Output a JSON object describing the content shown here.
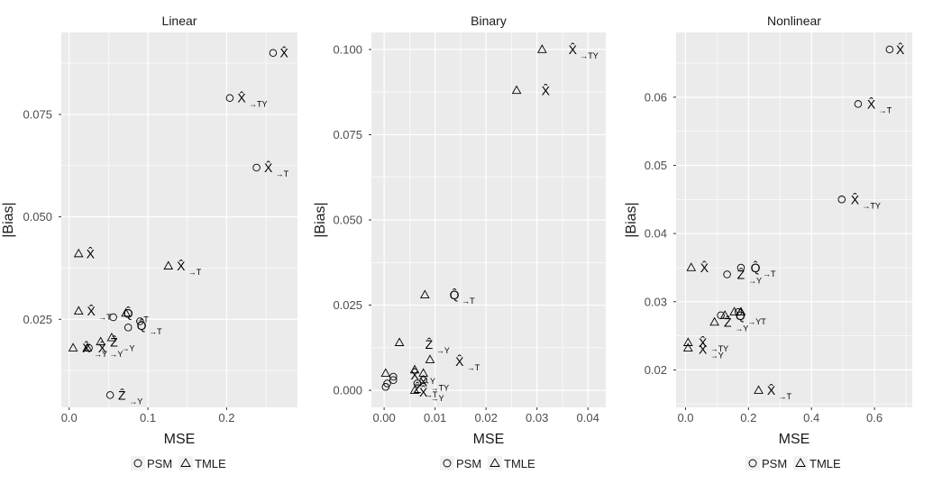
{
  "figure": {
    "xlabel": "MSE",
    "ylabel": "|Bias|",
    "legend": {
      "placement": "bottom",
      "items": [
        {
          "label": "PSM",
          "shape": "circle"
        },
        {
          "label": "TMLE",
          "shape": "triangle"
        }
      ]
    },
    "colors": {
      "panel_bg": "#ebebeb",
      "grid": "#ffffff",
      "marks": "#000000",
      "text": "#1a1a1a",
      "tick_text": "#4d4d4d"
    }
  },
  "chart_data": [
    {
      "type": "scatter",
      "title": "Linear",
      "xlabel": "MSE",
      "ylabel": "|Bias|",
      "xlim": [
        -0.01,
        0.29
      ],
      "ylim": [
        0.0035,
        0.095
      ],
      "xticks": [
        0.0,
        0.1,
        0.2
      ],
      "xtick_labels": [
        "0.0",
        "0.1",
        "0.2"
      ],
      "yticks": [
        0.025,
        0.05,
        0.075
      ],
      "ytick_labels": [
        "0.025",
        "0.050",
        "0.075"
      ],
      "grid": true,
      "points": [
        {
          "method": "PSM",
          "x": 0.259,
          "y": 0.09
        },
        {
          "method": "PSM",
          "x": 0.204,
          "y": 0.079
        },
        {
          "method": "PSM",
          "x": 0.238,
          "y": 0.062
        },
        {
          "method": "PSM",
          "x": 0.025,
          "y": 0.018
        },
        {
          "method": "PSM",
          "x": 0.052,
          "y": 0.0065
        },
        {
          "method": "PSM",
          "x": 0.075,
          "y": 0.023
        },
        {
          "method": "PSM",
          "x": 0.09,
          "y": 0.0245
        },
        {
          "method": "PSM",
          "x": 0.056,
          "y": 0.0255
        },
        {
          "method": "TMLE",
          "x": 0.012,
          "y": 0.041
        },
        {
          "method": "TMLE",
          "x": 0.126,
          "y": 0.038
        },
        {
          "method": "TMLE",
          "x": 0.012,
          "y": 0.027
        },
        {
          "method": "TMLE",
          "x": 0.005,
          "y": 0.018
        },
        {
          "method": "TMLE",
          "x": 0.023,
          "y": 0.018
        },
        {
          "method": "TMLE",
          "x": 0.04,
          "y": 0.0195
        },
        {
          "method": "TMLE",
          "x": 0.054,
          "y": 0.0205
        },
        {
          "method": "TMLE",
          "x": 0.072,
          "y": 0.0265
        }
      ],
      "labels": [
        {
          "text": "X̂",
          "x": 0.273,
          "y": 0.09
        },
        {
          "text": "X̂",
          "x": 0.219,
          "y": 0.079,
          "sub": "→TY"
        },
        {
          "text": "X̂",
          "x": 0.253,
          "y": 0.062,
          "sub": "→T"
        },
        {
          "text": "X̂",
          "x": 0.027,
          "y": 0.041
        },
        {
          "text": "X̂",
          "x": 0.142,
          "y": 0.038,
          "sub": "→T"
        },
        {
          "text": "X̂",
          "x": 0.028,
          "y": 0.027,
          "sub": "→T"
        },
        {
          "text": "Q̂",
          "x": 0.075,
          "y": 0.0265,
          "sub": "→T"
        },
        {
          "text": "Q̂",
          "x": 0.092,
          "y": 0.0235,
          "sub": "→T"
        },
        {
          "text": "Ẑ",
          "x": 0.057,
          "y": 0.0195,
          "sub": "→Y"
        },
        {
          "text": "X̂",
          "x": 0.022,
          "y": 0.018,
          "sub": "→Y"
        },
        {
          "text": "X̂",
          "x": 0.042,
          "y": 0.018,
          "sub": "→Y"
        },
        {
          "text": "Ẑ",
          "x": 0.067,
          "y": 0.0065,
          "sub": "→Y"
        }
      ]
    },
    {
      "type": "scatter",
      "title": "Binary",
      "xlabel": "MSE",
      "ylabel": "|Bias|",
      "xlim": [
        -0.0025,
        0.0435
      ],
      "ylim": [
        -0.005,
        0.105
      ],
      "xticks": [
        0.0,
        0.01,
        0.02,
        0.03,
        0.04
      ],
      "xtick_labels": [
        "0.00",
        "0.01",
        "0.02",
        "0.03",
        "0.04"
      ],
      "yticks": [
        0.0,
        0.025,
        0.05,
        0.075,
        0.1
      ],
      "ytick_labels": [
        "0.000",
        "0.025",
        "0.050",
        "0.075",
        "0.100"
      ],
      "grid": true,
      "points": [
        {
          "method": "PSM",
          "x": 0.0003,
          "y": 0.001
        },
        {
          "method": "PSM",
          "x": 0.0006,
          "y": 0.002
        },
        {
          "method": "PSM",
          "x": 0.0018,
          "y": 0.004
        },
        {
          "method": "PSM",
          "x": 0.0018,
          "y": 0.003
        },
        {
          "method": "PSM",
          "x": 0.0065,
          "y": 0.002
        },
        {
          "method": "PSM",
          "x": 0.0077,
          "y": 0.003
        },
        {
          "method": "TMLE",
          "x": 0.031,
          "y": 0.1
        },
        {
          "method": "TMLE",
          "x": 0.026,
          "y": 0.088
        },
        {
          "method": "TMLE",
          "x": 0.008,
          "y": 0.028
        },
        {
          "method": "TMLE",
          "x": 0.003,
          "y": 0.014
        },
        {
          "method": "TMLE",
          "x": 0.009,
          "y": 0.009
        },
        {
          "method": "TMLE",
          "x": 0.0003,
          "y": 0.005
        },
        {
          "method": "TMLE",
          "x": 0.006,
          "y": 0.006
        },
        {
          "method": "TMLE",
          "x": 0.0077,
          "y": 0.005
        },
        {
          "method": "TMLE",
          "x": 0.006,
          "y": 0.0
        }
      ],
      "labels": [
        {
          "text": "X̂",
          "x": 0.037,
          "y": 0.1,
          "sub": "→TY"
        },
        {
          "text": "X̂",
          "x": 0.0317,
          "y": 0.088
        },
        {
          "text": "Q̂",
          "x": 0.0138,
          "y": 0.028,
          "sub": "→T"
        },
        {
          "text": "Ẑ",
          "x": 0.0088,
          "y": 0.0135,
          "sub": "→Y"
        },
        {
          "text": "X̂",
          "x": 0.0148,
          "y": 0.0085,
          "sub": "→T"
        },
        {
          "text": "X̂",
          "x": 0.006,
          "y": 0.0045,
          "sub": "→Y"
        },
        {
          "text": "X̂",
          "x": 0.0077,
          "y": 0.0025,
          "sub": "→TY"
        },
        {
          "text": "Ẑ",
          "x": 0.0065,
          "y": 0.0005,
          "sub": "→T"
        },
        {
          "text": "X̂",
          "x": 0.0077,
          "y": -0.0005,
          "sub": "→Y"
        }
      ]
    },
    {
      "type": "scatter",
      "title": "Nonlinear",
      "xlabel": "MSE",
      "ylabel": "|Bias|",
      "xlim": [
        -0.03,
        0.72
      ],
      "ylim": [
        0.0145,
        0.0695
      ],
      "xticks": [
        0.0,
        0.2,
        0.4,
        0.6
      ],
      "xtick_labels": [
        "0.0",
        "0.2",
        "0.4",
        "0.6"
      ],
      "yticks": [
        0.02,
        0.03,
        0.04,
        0.05,
        0.06
      ],
      "ytick_labels": [
        "0.02",
        "0.03",
        "0.04",
        "0.05",
        "0.06"
      ],
      "grid": true,
      "points": [
        {
          "method": "PSM",
          "x": 0.648,
          "y": 0.067
        },
        {
          "method": "PSM",
          "x": 0.548,
          "y": 0.059
        },
        {
          "method": "PSM",
          "x": 0.496,
          "y": 0.045
        },
        {
          "method": "PSM",
          "x": 0.176,
          "y": 0.035
        },
        {
          "method": "PSM",
          "x": 0.132,
          "y": 0.034
        },
        {
          "method": "PSM",
          "x": 0.112,
          "y": 0.028
        },
        {
          "method": "PSM",
          "x": 0.168,
          "y": 0.0285
        },
        {
          "method": "TMLE",
          "x": 0.018,
          "y": 0.035
        },
        {
          "method": "TMLE",
          "x": 0.232,
          "y": 0.017
        },
        {
          "method": "TMLE",
          "x": 0.092,
          "y": 0.027
        },
        {
          "method": "TMLE",
          "x": 0.125,
          "y": 0.028
        },
        {
          "method": "TMLE",
          "x": 0.155,
          "y": 0.0285
        },
        {
          "method": "TMLE",
          "x": 0.176,
          "y": 0.0285
        },
        {
          "method": "TMLE",
          "x": 0.008,
          "y": 0.024
        },
        {
          "method": "TMLE",
          "x": 0.008,
          "y": 0.0232
        }
      ],
      "labels": [
        {
          "text": "X̂",
          "x": 0.682,
          "y": 0.067
        },
        {
          "text": "X̂",
          "x": 0.59,
          "y": 0.059,
          "sub": "→T"
        },
        {
          "text": "X̂",
          "x": 0.538,
          "y": 0.045,
          "sub": "→TY"
        },
        {
          "text": "X̂",
          "x": 0.06,
          "y": 0.035
        },
        {
          "text": "Q̂",
          "x": 0.222,
          "y": 0.035,
          "sub": "→T"
        },
        {
          "text": "Ẑ",
          "x": 0.176,
          "y": 0.034,
          "sub": "→Y"
        },
        {
          "text": "Q̂",
          "x": 0.174,
          "y": 0.028,
          "sub": "→YT"
        },
        {
          "text": "Ẑ",
          "x": 0.134,
          "y": 0.027,
          "sub": "→Y"
        },
        {
          "text": "X̂",
          "x": 0.055,
          "y": 0.024,
          "sub": "→TY"
        },
        {
          "text": "X̂",
          "x": 0.055,
          "y": 0.023,
          "sub": "→Y"
        },
        {
          "text": "X̂",
          "x": 0.272,
          "y": 0.017,
          "sub": "→T"
        }
      ]
    }
  ]
}
